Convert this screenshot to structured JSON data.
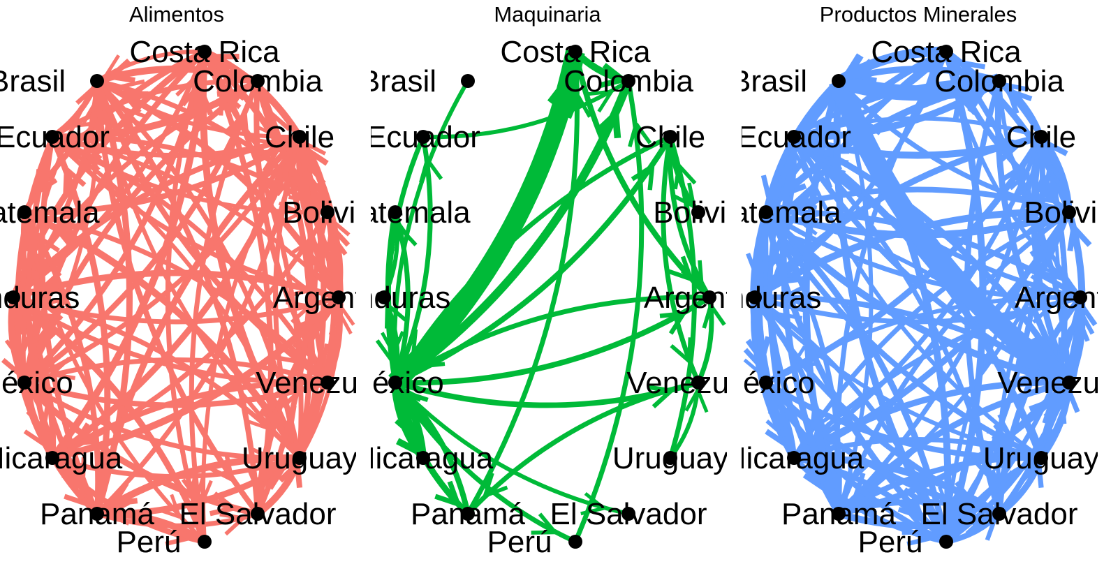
{
  "panels": [
    {
      "title": "Alimentos",
      "color": "#F8766D"
    },
    {
      "title": "Maquinaria",
      "color": "#00BA38"
    },
    {
      "title": "Productos Minerales",
      "color": "#619CFF"
    }
  ],
  "countries": [
    "Costa Rica",
    "Colombia",
    "Chile",
    "Bolivia",
    "Argentina",
    "Venezuela",
    "Uruguay",
    "El Salvador",
    "Perú",
    "Panamá",
    "Nicaragua",
    "México",
    "Honduras",
    "Guatemala",
    "Ecuador",
    "Brasil"
  ]
}
